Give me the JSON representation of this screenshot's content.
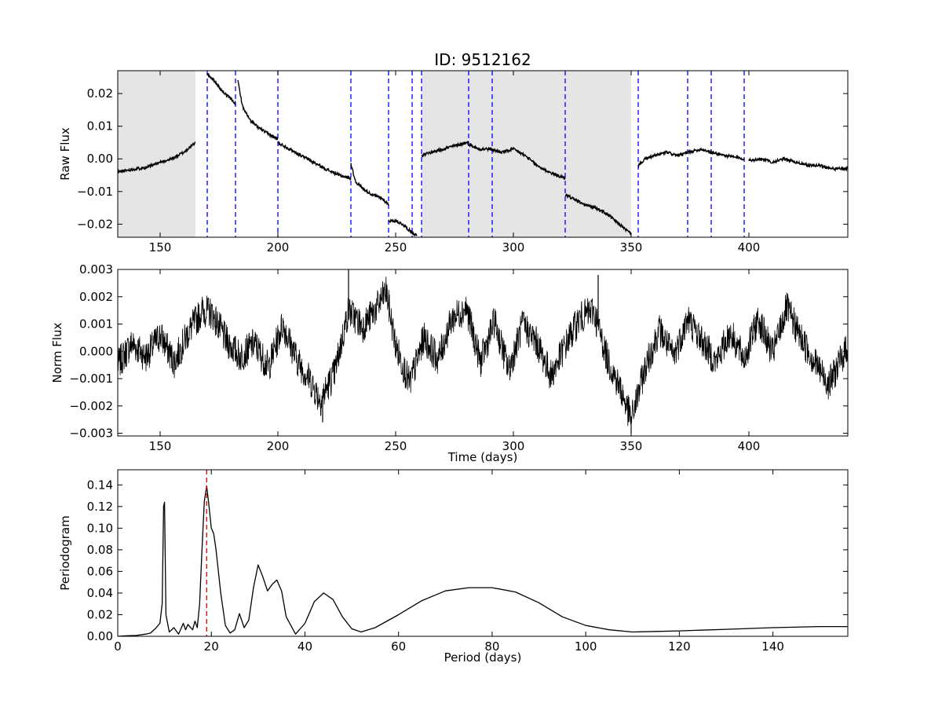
{
  "title": "ID: 9512162",
  "chart_data": [
    {
      "type": "line",
      "ylabel": "Raw Flux",
      "xlabel": "",
      "xlim": [
        132,
        442
      ],
      "ylim": [
        -0.024,
        0.027
      ],
      "xticks": [
        150,
        200,
        250,
        300,
        350,
        400
      ],
      "yticks": [
        -0.02,
        -0.01,
        0.0,
        0.01,
        0.02
      ],
      "ytick_labels": [
        "−0.02",
        "−0.01",
        "0.00",
        "0.01",
        "0.02"
      ],
      "shaded_spans": [
        [
          132,
          165
        ],
        [
          261,
          350
        ]
      ],
      "vlines": [
        170,
        182,
        200,
        231,
        247,
        257,
        261,
        281,
        291,
        322,
        353,
        374,
        384,
        398
      ],
      "vline_color": "#0000ff",
      "line_color": "#000000",
      "segments": [
        {
          "x": [
            132,
            140,
            145,
            150,
            155,
            160,
            165
          ],
          "y": [
            -0.004,
            -0.003,
            -0.0025,
            -0.001,
            0.0,
            0.002,
            0.005
          ]
        },
        {
          "x": [
            170,
            173,
            176,
            179,
            182
          ],
          "y": [
            0.026,
            0.024,
            0.021,
            0.019,
            0.017
          ]
        },
        {
          "x": [
            183,
            185,
            188,
            191,
            195,
            200
          ],
          "y": [
            0.024,
            0.016,
            0.012,
            0.01,
            0.008,
            0.006
          ]
        },
        {
          "x": [
            200,
            205,
            210,
            215,
            220,
            226,
            231
          ],
          "y": [
            0.005,
            0.003,
            0.001,
            -0.001,
            -0.003,
            -0.005,
            -0.006
          ]
        },
        {
          "x": [
            231,
            233,
            236,
            240,
            244,
            247
          ],
          "y": [
            -0.0015,
            -0.007,
            -0.009,
            -0.011,
            -0.012,
            -0.014
          ]
        },
        {
          "x": [
            247,
            250,
            253,
            256,
            259
          ],
          "y": [
            -0.019,
            -0.019,
            -0.02,
            -0.022,
            -0.0235
          ]
        },
        {
          "x": [
            261,
            265,
            270,
            275,
            280,
            285,
            290,
            295,
            300,
            305,
            310,
            315,
            322
          ],
          "y": [
            0.001,
            0.002,
            0.003,
            0.004,
            0.005,
            0.003,
            0.003,
            0.002,
            0.003,
            0.001,
            -0.002,
            -0.004,
            -0.006
          ]
        },
        {
          "x": [
            322,
            325,
            330,
            335,
            340,
            345,
            350
          ],
          "y": [
            -0.011,
            -0.012,
            -0.014,
            -0.015,
            -0.017,
            -0.02,
            -0.023
          ]
        },
        {
          "x": [
            353,
            356,
            360,
            365,
            370,
            374,
            380,
            384,
            390,
            398
          ],
          "y": [
            -0.002,
            0.0,
            0.001,
            0.002,
            0.001,
            0.002,
            0.003,
            0.002,
            0.001,
            0.0
          ]
        },
        {
          "x": [
            400,
            405,
            410,
            415,
            420,
            425,
            430,
            435,
            442
          ],
          "y": [
            -0.0005,
            0.0,
            -0.001,
            0.0,
            -0.001,
            -0.002,
            -0.002,
            -0.003,
            -0.003
          ]
        }
      ]
    },
    {
      "type": "line",
      "ylabel": "Norm Flux",
      "xlabel": "Time (days)",
      "xlim": [
        132,
        442
      ],
      "ylim": [
        -0.0031,
        0.003
      ],
      "xticks": [
        150,
        200,
        250,
        300,
        350,
        400
      ],
      "yticks": [
        -0.003,
        -0.002,
        -0.001,
        0.0,
        0.001,
        0.002,
        0.003
      ],
      "ytick_labels": [
        "−0.003",
        "−0.002",
        "−0.001",
        "0.000",
        "0.001",
        "0.002",
        "0.003"
      ],
      "line_color": "#000000",
      "x": [
        132,
        138,
        144,
        150,
        156,
        162,
        168,
        172,
        178,
        184,
        190,
        196,
        202,
        208,
        214,
        218,
        224,
        230,
        236,
        242,
        246,
        250,
        256,
        262,
        268,
        274,
        280,
        286,
        292,
        298,
        304,
        310,
        316,
        322,
        328,
        334,
        340,
        346,
        350,
        356,
        362,
        368,
        374,
        380,
        386,
        392,
        398,
        404,
        410,
        416,
        422,
        428,
        434,
        442
      ],
      "y": [
        -0.0005,
        0.0003,
        -0.0002,
        0.0006,
        -0.0004,
        0.0007,
        0.0015,
        0.0014,
        0.0004,
        -0.0002,
        0.0003,
        -0.0006,
        0.001,
        -0.0003,
        -0.0011,
        -0.0018,
        -0.0008,
        0.0015,
        0.0009,
        0.0016,
        0.0022,
        0.0002,
        -0.0012,
        0.0005,
        -0.0003,
        0.0012,
        0.0016,
        -0.0004,
        0.0011,
        -0.0007,
        0.001,
        0.0003,
        -0.0009,
        0.0002,
        0.0012,
        0.0015,
        -0.0003,
        -0.0015,
        -0.0025,
        -0.0006,
        0.0008,
        -0.0002,
        0.0012,
        0.0004,
        -0.0004,
        0.0007,
        -0.0003,
        0.0012,
        -0.0001,
        0.0016,
        0.0005,
        -0.0004,
        -0.0012,
        0.0002
      ],
      "spikes": [
        [
          230,
          0.003
        ],
        [
          336,
          0.0028
        ],
        [
          350,
          -0.003
        ],
        [
          219,
          -0.0026
        ]
      ]
    },
    {
      "type": "line",
      "ylabel": "Periodogram",
      "xlabel": "Period (days)",
      "xlim": [
        0,
        156
      ],
      "ylim": [
        0,
        0.154
      ],
      "xticks": [
        0,
        20,
        40,
        60,
        80,
        100,
        120,
        140
      ],
      "yticks": [
        0.0,
        0.02,
        0.04,
        0.06,
        0.08,
        0.1,
        0.12,
        0.14
      ],
      "ytick_labels": [
        "0.00",
        "0.02",
        "0.04",
        "0.06",
        "0.08",
        "0.10",
        "0.12",
        "0.14"
      ],
      "vline": 19.0,
      "vline_color": "#cc0000",
      "line_color": "#000000",
      "x": [
        0,
        2,
        4,
        6,
        7,
        8,
        9,
        9.5,
        9.8,
        10.0,
        10.3,
        11,
        12,
        13,
        14,
        14.5,
        15,
        16,
        16.5,
        17,
        17.5,
        18,
        18.5,
        19,
        19.5,
        20,
        20.5,
        21,
        22,
        23,
        24,
        25,
        26,
        27,
        28,
        29,
        30,
        31,
        32,
        33,
        34,
        35,
        36,
        38,
        40,
        42,
        44,
        46,
        48,
        50,
        52,
        55,
        60,
        65,
        70,
        75,
        80,
        85,
        90,
        95,
        100,
        105,
        110,
        115,
        120,
        130,
        140,
        150,
        156
      ],
      "y": [
        0.0,
        0.0005,
        0.0008,
        0.002,
        0.003,
        0.007,
        0.012,
        0.03,
        0.12,
        0.124,
        0.02,
        0.004,
        0.008,
        0.002,
        0.012,
        0.006,
        0.011,
        0.006,
        0.014,
        0.008,
        0.03,
        0.08,
        0.125,
        0.139,
        0.12,
        0.1,
        0.095,
        0.08,
        0.04,
        0.01,
        0.003,
        0.006,
        0.021,
        0.008,
        0.015,
        0.045,
        0.066,
        0.055,
        0.042,
        0.048,
        0.052,
        0.042,
        0.018,
        0.002,
        0.012,
        0.032,
        0.04,
        0.034,
        0.018,
        0.007,
        0.004,
        0.008,
        0.02,
        0.033,
        0.042,
        0.045,
        0.045,
        0.041,
        0.031,
        0.018,
        0.01,
        0.006,
        0.004,
        0.0045,
        0.005,
        0.0065,
        0.008,
        0.009,
        0.009
      ]
    }
  ]
}
